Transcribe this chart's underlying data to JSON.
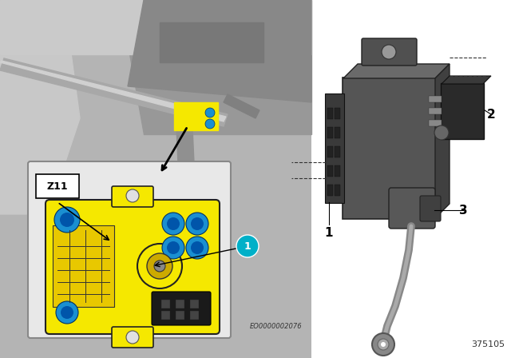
{
  "bg_color": "#ffffff",
  "module_yellow": "#f5e800",
  "blue_connector": "#1a8fd1",
  "teal_badge": "#00b0c8",
  "text_color": "#000000",
  "part_labels": [
    "1",
    "2",
    "3"
  ],
  "watermark_eo": "EO0000002076",
  "part_number": "375105",
  "left_photo_bg": "#b8b8b8",
  "inset_bg": "#e0e0e0",
  "inset_border": "#888888",
  "dark_grey": "#484848",
  "mid_grey": "#707070",
  "light_grey": "#c0c0c0",
  "cable_grey": "#909090"
}
